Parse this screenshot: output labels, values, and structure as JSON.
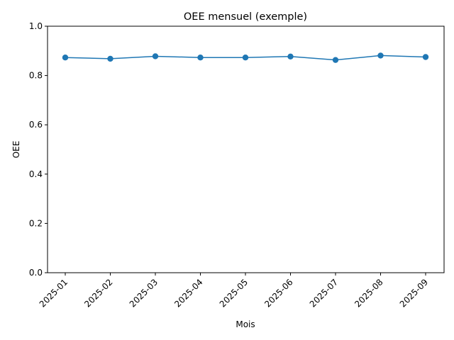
{
  "chart_data": {
    "type": "line",
    "title": "OEE mensuel (exemple)",
    "xlabel": "Mois",
    "ylabel": "OEE",
    "categories": [
      "2025-01",
      "2025-02",
      "2025-03",
      "2025-04",
      "2025-05",
      "2025-06",
      "2025-07",
      "2025-08",
      "2025-09"
    ],
    "values": [
      0.873,
      0.868,
      0.878,
      0.873,
      0.873,
      0.877,
      0.863,
      0.881,
      0.875
    ],
    "ylim": [
      0.0,
      1.0
    ],
    "yticks": [
      "0.0",
      "0.2",
      "0.4",
      "0.6",
      "0.8",
      "1.0"
    ],
    "grid": false,
    "marker": "circle",
    "line_color": "#1f77b4"
  }
}
